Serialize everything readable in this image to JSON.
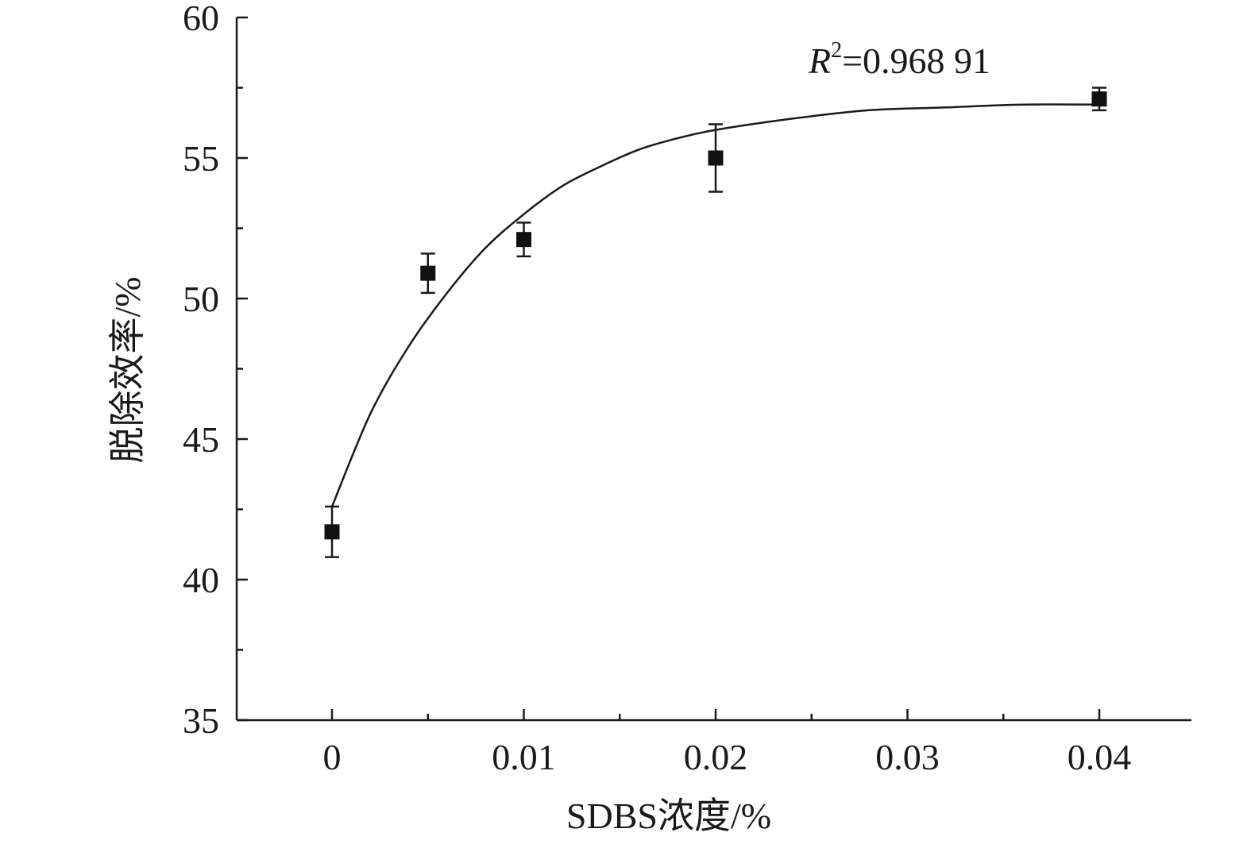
{
  "chart_data": {
    "type": "scatter",
    "xlabel": "SDBS浓度/%",
    "ylabel": "脱除效率/%",
    "xlim": [
      -0.005,
      0.042
    ],
    "ylim": [
      35,
      60
    ],
    "x_ticks": [
      "0",
      "0.01",
      "0.02",
      "0.03",
      "0.04"
    ],
    "x_tick_values": [
      0,
      0.01,
      0.02,
      0.03,
      0.04
    ],
    "x_minor_tick_values": [
      0.005,
      0.015,
      0.025,
      0.035
    ],
    "y_ticks": [
      "35",
      "40",
      "45",
      "50",
      "55",
      "60"
    ],
    "y_tick_values": [
      35,
      40,
      45,
      50,
      55,
      60
    ],
    "y_minor_tick_values": [
      37.5,
      42.5,
      47.5,
      52.5,
      57.5
    ],
    "series": [
      {
        "marker": "square",
        "color": "#111111",
        "points": [
          {
            "x": 0,
            "y": 41.7,
            "err": 0.9
          },
          {
            "x": 0.005,
            "y": 50.9,
            "err": 0.7
          },
          {
            "x": 0.01,
            "y": 52.1,
            "err": 0.6
          },
          {
            "x": 0.02,
            "y": 55.0,
            "err": 1.2
          },
          {
            "x": 0.04,
            "y": 57.1,
            "err": 0.4
          }
        ]
      }
    ],
    "fit_curve": {
      "model": "exponential",
      "x": [
        0,
        0.002,
        0.004,
        0.006,
        0.008,
        0.01,
        0.012,
        0.014,
        0.016,
        0.018,
        0.02,
        0.024,
        0.028,
        0.032,
        0.036,
        0.04
      ],
      "y": [
        42.6,
        45.9,
        48.3,
        50.2,
        51.8,
        53.0,
        54.0,
        54.7,
        55.3,
        55.7,
        56.0,
        56.4,
        56.7,
        56.8,
        56.9,
        56.9
      ]
    },
    "annotation": {
      "r_symbol": "R",
      "r_exponent": "2",
      "r_value": "=0.968 91"
    },
    "grid": false,
    "legend": "none"
  }
}
